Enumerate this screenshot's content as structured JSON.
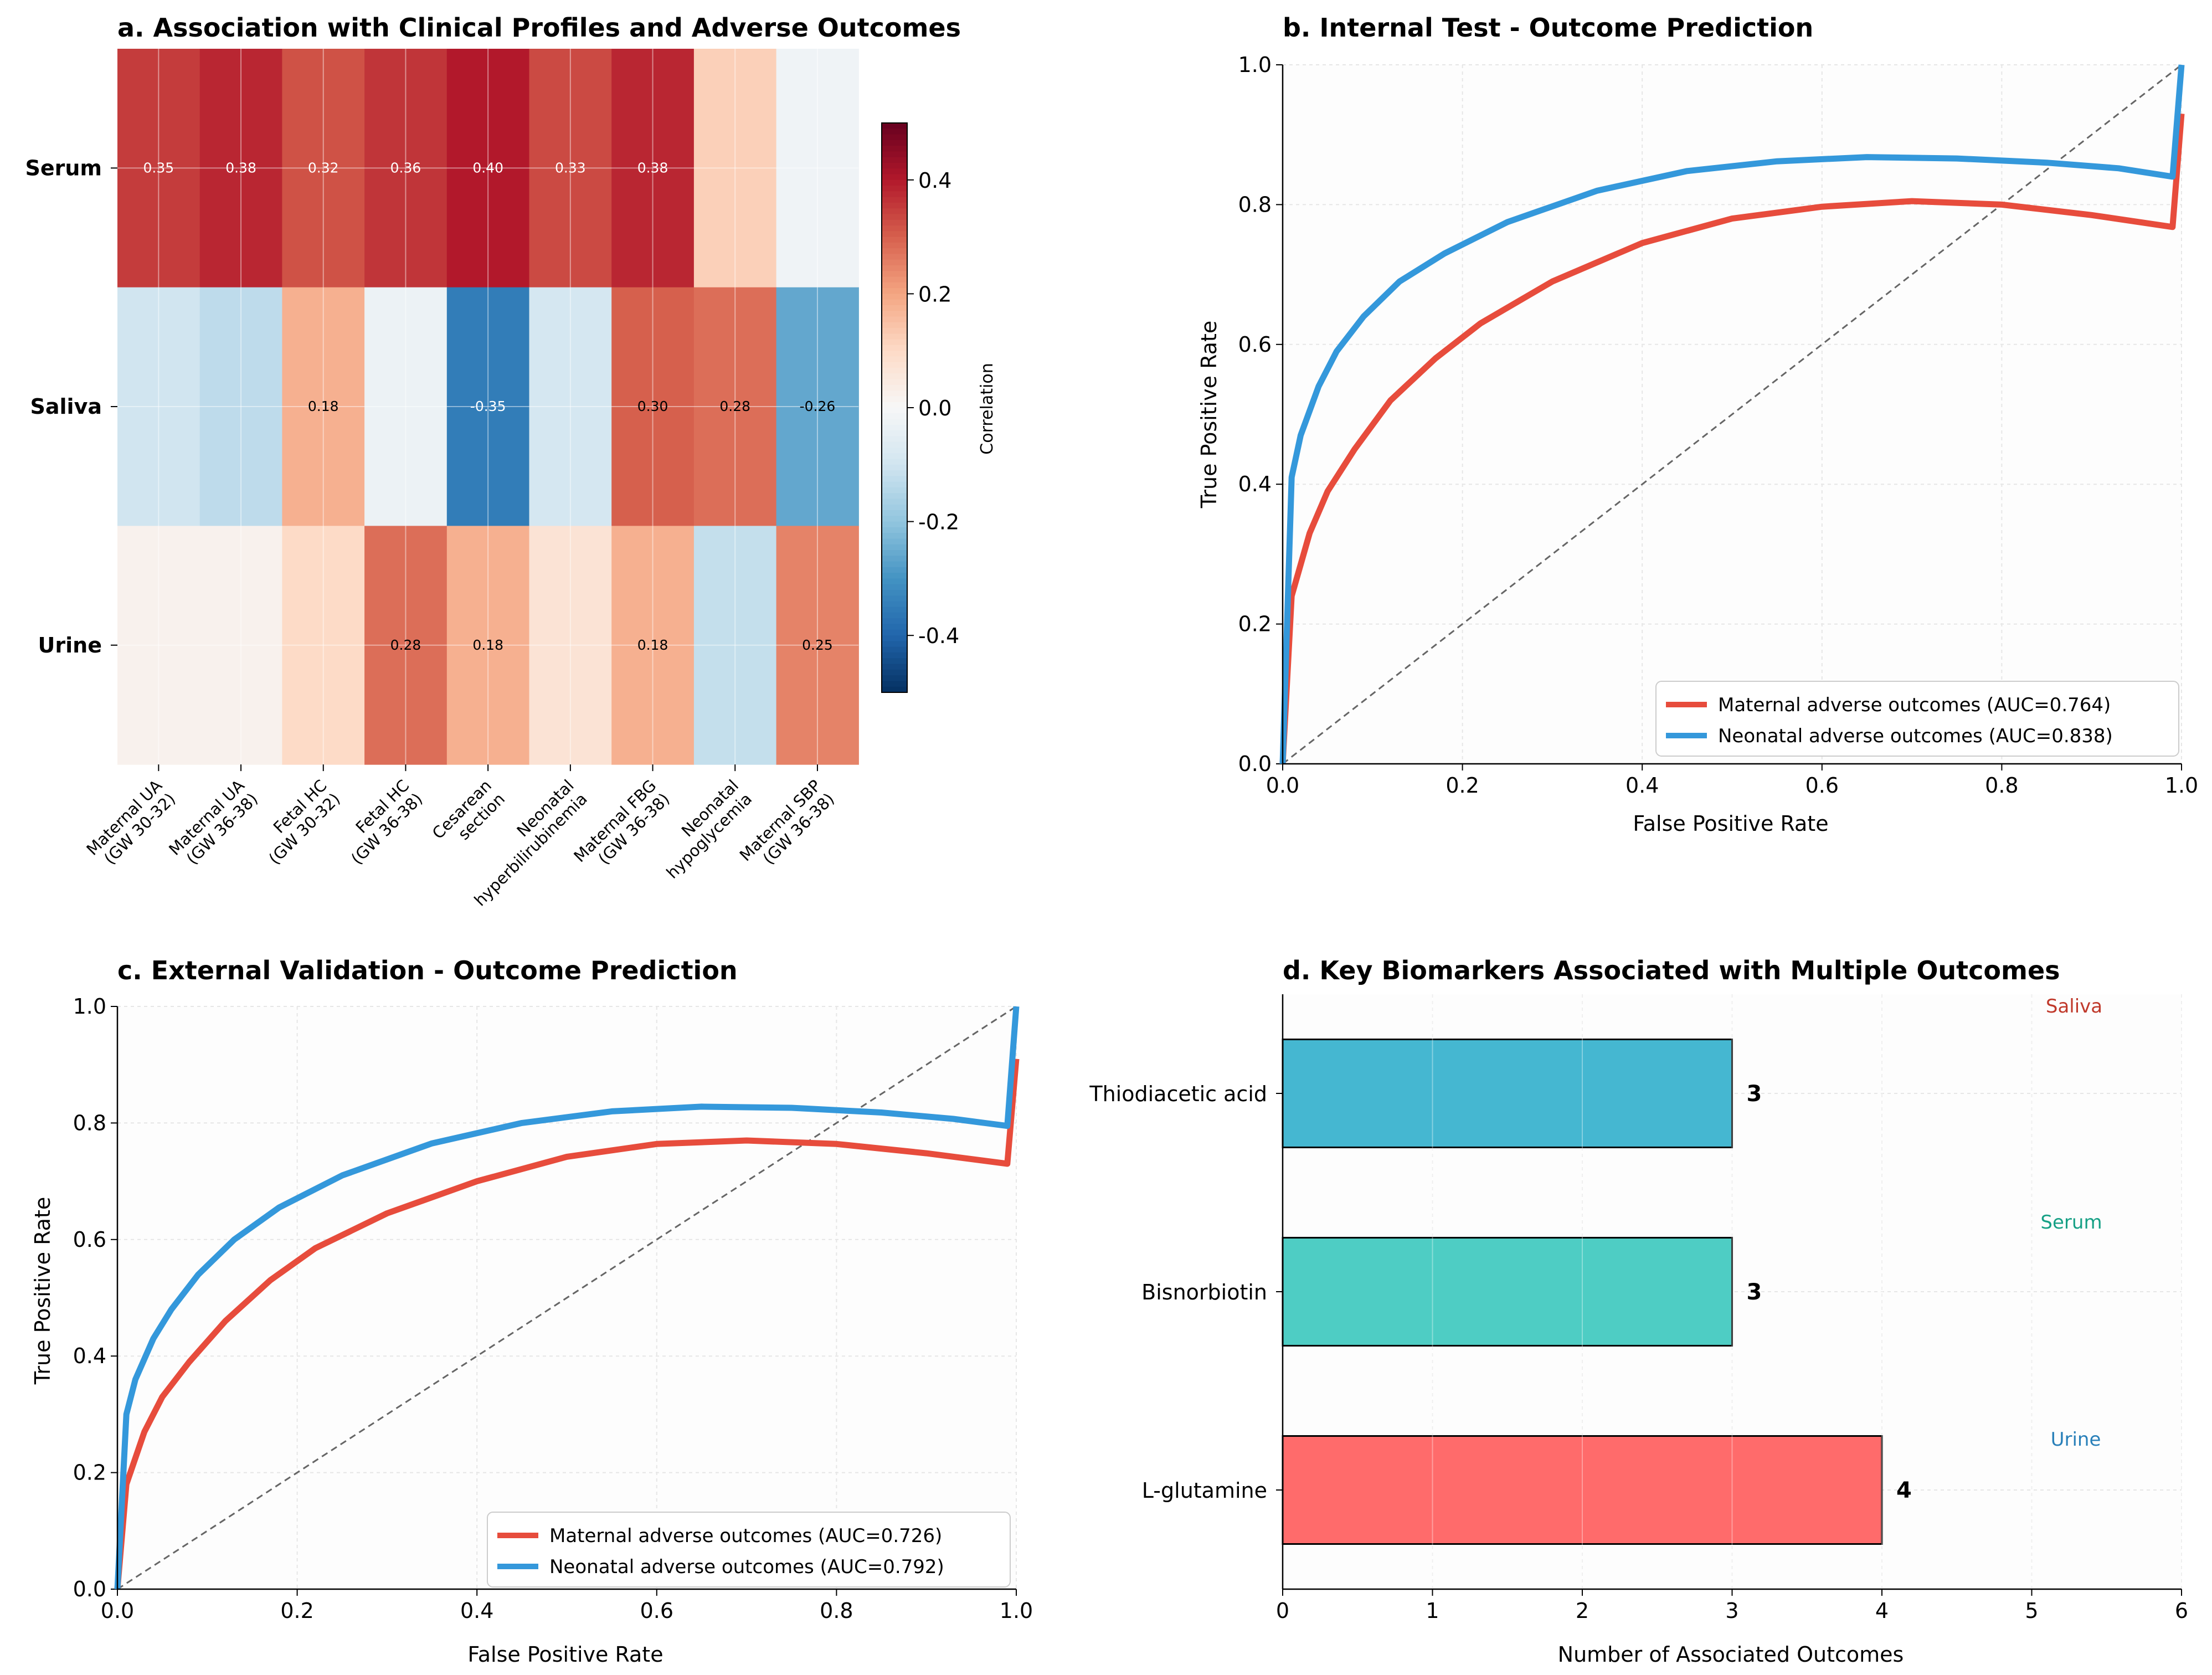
{
  "chart_data": [
    {
      "panel": "a",
      "type": "heatmap",
      "title": "a. Association with Clinical Profiles and Adverse Outcomes",
      "rows": [
        "Serum",
        "Saliva",
        "Urine"
      ],
      "columns": [
        [
          "Maternal UA",
          "(GW 30-32)"
        ],
        [
          "Maternal UA",
          "(GW 36-38)"
        ],
        [
          "Fetal HC",
          "(GW 30-32)"
        ],
        [
          "Fetal HC",
          "(GW 36-38)"
        ],
        [
          "Cesarean",
          "section"
        ],
        [
          "Neonatal",
          "hyperbilirubinemia"
        ],
        [
          "Maternal FBG",
          "(GW 36-38)"
        ],
        [
          "Neonatal",
          "hypoglycemia"
        ],
        [
          "Maternal SBP",
          "(GW 36-38)"
        ]
      ],
      "values": [
        [
          0.35,
          0.38,
          0.32,
          0.36,
          0.4,
          0.33,
          0.38,
          0.12,
          -0.02
        ],
        [
          -0.1,
          -0.13,
          0.18,
          -0.03,
          -0.35,
          -0.09,
          0.3,
          0.28,
          -0.26
        ],
        [
          0.02,
          0.02,
          0.1,
          0.28,
          0.18,
          0.07,
          0.18,
          -0.12,
          0.25
        ]
      ],
      "labels": [
        [
          "0.35",
          "0.38",
          "0.32",
          "0.36",
          "0.40",
          "0.33",
          "0.38",
          "",
          ""
        ],
        [
          "",
          "",
          "0.18",
          "",
          "-0.35",
          "",
          "0.30",
          "0.28",
          "-0.26"
        ],
        [
          "",
          "",
          "",
          "0.28",
          "0.18",
          "",
          "0.18",
          "",
          "0.25"
        ]
      ],
      "colorbar": {
        "label": "Correlation",
        "range": [
          -0.5,
          0.5
        ],
        "ticks": [
          0.4,
          0.2,
          0.0,
          -0.2,
          -0.4
        ],
        "tick_labels": [
          "0.4",
          "0.2",
          "0.0",
          "-0.2",
          "-0.4"
        ]
      },
      "colormap": [
        "#053061",
        "#2166ac",
        "#4393c3",
        "#92c5de",
        "#d1e5f0",
        "#f7f7f7",
        "#fddbc7",
        "#f4a582",
        "#d6604d",
        "#b2182b",
        "#67001f"
      ]
    },
    {
      "panel": "b",
      "type": "line",
      "title": "b. Internal Test - Outcome Prediction",
      "xlabel": "False Positive Rate",
      "ylabel": "True Positive Rate",
      "xlim": [
        0,
        1
      ],
      "ylim": [
        0,
        1
      ],
      "xticks": [
        "0.0",
        "0.2",
        "0.4",
        "0.6",
        "0.8",
        "1.0"
      ],
      "yticks": [
        "0.0",
        "0.2",
        "0.4",
        "0.6",
        "0.8",
        "1.0"
      ],
      "series": [
        {
          "name": "Maternal adverse outcomes (AUC=0.764)",
          "color": "#e74c3c",
          "points": [
            [
              0,
              0
            ],
            [
              0.01,
              0.24
            ],
            [
              0.03,
              0.33
            ],
            [
              0.05,
              0.39
            ],
            [
              0.08,
              0.45
            ],
            [
              0.12,
              0.52
            ],
            [
              0.17,
              0.58
            ],
            [
              0.22,
              0.63
            ],
            [
              0.3,
              0.69
            ],
            [
              0.4,
              0.745
            ],
            [
              0.5,
              0.78
            ],
            [
              0.6,
              0.797
            ],
            [
              0.7,
              0.805
            ],
            [
              0.8,
              0.8
            ],
            [
              0.9,
              0.785
            ],
            [
              0.99,
              0.768
            ],
            [
              1.0,
              0.93
            ]
          ]
        },
        {
          "name": "Neonatal adverse outcomes (AUC=0.838)",
          "color": "#3498db",
          "points": [
            [
              0,
              0
            ],
            [
              0.01,
              0.41
            ],
            [
              0.02,
              0.47
            ],
            [
              0.04,
              0.54
            ],
            [
              0.06,
              0.59
            ],
            [
              0.09,
              0.64
            ],
            [
              0.13,
              0.69
            ],
            [
              0.18,
              0.73
            ],
            [
              0.25,
              0.775
            ],
            [
              0.35,
              0.82
            ],
            [
              0.45,
              0.848
            ],
            [
              0.55,
              0.862
            ],
            [
              0.65,
              0.868
            ],
            [
              0.75,
              0.866
            ],
            [
              0.85,
              0.86
            ],
            [
              0.93,
              0.852
            ],
            [
              0.99,
              0.84
            ],
            [
              1.0,
              1.0
            ]
          ]
        }
      ],
      "reference_line": [
        [
          0,
          0
        ],
        [
          1,
          1
        ]
      ],
      "legend": "lower-right"
    },
    {
      "panel": "c",
      "type": "line",
      "title": "c. External Validation - Outcome Prediction",
      "xlabel": "False Positive Rate",
      "ylabel": "True Positive Rate",
      "xlim": [
        0,
        1
      ],
      "ylim": [
        0,
        1
      ],
      "xticks": [
        "0.0",
        "0.2",
        "0.4",
        "0.6",
        "0.8",
        "1.0"
      ],
      "yticks": [
        "0.0",
        "0.2",
        "0.4",
        "0.6",
        "0.8",
        "1.0"
      ],
      "series": [
        {
          "name": "Maternal adverse outcomes (AUC=0.726)",
          "color": "#e74c3c",
          "points": [
            [
              0,
              0
            ],
            [
              0.01,
              0.18
            ],
            [
              0.03,
              0.27
            ],
            [
              0.05,
              0.33
            ],
            [
              0.08,
              0.39
            ],
            [
              0.12,
              0.46
            ],
            [
              0.17,
              0.53
            ],
            [
              0.22,
              0.585
            ],
            [
              0.3,
              0.645
            ],
            [
              0.4,
              0.7
            ],
            [
              0.5,
              0.742
            ],
            [
              0.6,
              0.764
            ],
            [
              0.7,
              0.77
            ],
            [
              0.8,
              0.764
            ],
            [
              0.9,
              0.748
            ],
            [
              0.99,
              0.73
            ],
            [
              1.0,
              0.91
            ]
          ]
        },
        {
          "name": "Neonatal adverse outcomes (AUC=0.792)",
          "color": "#3498db",
          "points": [
            [
              0,
              0
            ],
            [
              0.01,
              0.3
            ],
            [
              0.02,
              0.36
            ],
            [
              0.04,
              0.43
            ],
            [
              0.06,
              0.48
            ],
            [
              0.09,
              0.54
            ],
            [
              0.13,
              0.6
            ],
            [
              0.18,
              0.655
            ],
            [
              0.25,
              0.71
            ],
            [
              0.35,
              0.765
            ],
            [
              0.45,
              0.8
            ],
            [
              0.55,
              0.82
            ],
            [
              0.65,
              0.828
            ],
            [
              0.75,
              0.826
            ],
            [
              0.85,
              0.818
            ],
            [
              0.93,
              0.807
            ],
            [
              0.99,
              0.795
            ],
            [
              1.0,
              1.0
            ]
          ]
        }
      ],
      "reference_line": [
        [
          0,
          0
        ],
        [
          1,
          1
        ]
      ],
      "legend": "lower-right"
    },
    {
      "panel": "d",
      "type": "bar",
      "orientation": "horizontal",
      "title": "d. Key Biomarkers Associated with Multiple Outcomes",
      "xlabel": "Number of Associated Outcomes",
      "xlim": [
        0,
        6
      ],
      "xticks": [
        "0",
        "1",
        "2",
        "3",
        "4",
        "5",
        "6"
      ],
      "categories": [
        "Thiodiacetic acid",
        "Bisnorbiotin",
        "L-glutamine"
      ],
      "values": [
        3,
        3,
        4
      ],
      "value_labels": [
        "3",
        "3",
        "4"
      ],
      "bar_colors": [
        "#45b7d1",
        "#4ecdc4",
        "#ff6b6b"
      ],
      "annotations": [
        {
          "text": "Saliva",
          "color": "#c0392b"
        },
        {
          "text": "Serum",
          "color": "#16a085"
        },
        {
          "text": "Urine",
          "color": "#2980b9"
        }
      ]
    }
  ]
}
